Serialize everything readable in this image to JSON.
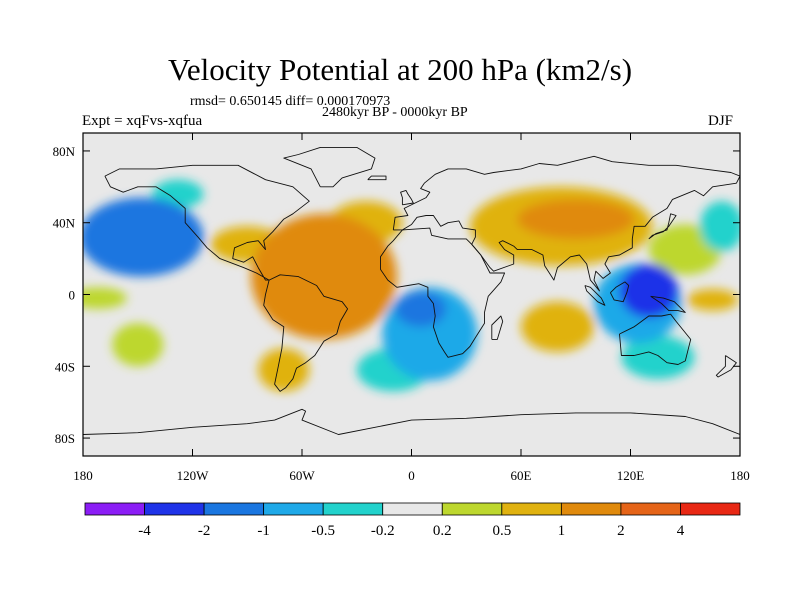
{
  "header": {
    "title": "Velocity Potential at 200 hPa (km2/s)",
    "stats": "rmsd= 0.650145 diff= 0.000170973",
    "period": "2480kyr BP - 0000kyr BP",
    "experiment": "Expt = xqFvs-xqfua",
    "season": "DJF"
  },
  "chart_data": {
    "type": "heatmap",
    "projection": "cylindrical-equidistant",
    "title": "Velocity Potential at 200 hPa (km2/s)",
    "units": "km2/s",
    "x_axis": {
      "range": [
        -180,
        180
      ],
      "ticks": [
        {
          "value": -180,
          "label": "180"
        },
        {
          "value": -120,
          "label": "120W"
        },
        {
          "value": -60,
          "label": "60W"
        },
        {
          "value": 0,
          "label": "0"
        },
        {
          "value": 60,
          "label": "60E"
        },
        {
          "value": 120,
          "label": "120E"
        },
        {
          "value": 180,
          "label": "180"
        }
      ]
    },
    "y_axis": {
      "range": [
        -90,
        90
      ],
      "ticks": [
        {
          "value": 80,
          "label": "80N"
        },
        {
          "value": 40,
          "label": "40N"
        },
        {
          "value": 0,
          "label": "0"
        },
        {
          "value": -40,
          "label": "40S"
        },
        {
          "value": -80,
          "label": "80S"
        }
      ]
    },
    "colorbar": {
      "colors": [
        "#8b1df5",
        "#1f33e8",
        "#1a76e0",
        "#1fa9e8",
        "#22d2cc",
        "#e8e8e8",
        "#bdd72e",
        "#e0b210",
        "#e08a0c",
        "#e56418",
        "#e82814"
      ],
      "labels": [
        {
          "boundary": 1,
          "label": "-4"
        },
        {
          "boundary": 2,
          "label": "-2"
        },
        {
          "boundary": 3,
          "label": "-1"
        },
        {
          "boundary": 4,
          "label": "-0.5"
        },
        {
          "boundary": 5,
          "label": "-0.2"
        },
        {
          "boundary": 6,
          "label": "0.2"
        },
        {
          "boundary": 7,
          "label": "0.5"
        },
        {
          "boundary": 8,
          "label": "1"
        },
        {
          "boundary": 9,
          "label": "2"
        },
        {
          "boundary": 10,
          "label": "4"
        }
      ]
    },
    "anomalies": [
      {
        "name": "north-pacific-low",
        "lon": -148,
        "lat": 32,
        "rlon": 34,
        "rlat": 22,
        "value": -1.2
      },
      {
        "name": "north-pacific-core",
        "lon": -152,
        "lat": 35,
        "rlon": 20,
        "rlat": 12,
        "value": -1.6
      },
      {
        "name": "ne-pacific-fringe",
        "lon": -128,
        "lat": 56,
        "rlon": 14,
        "rlat": 8,
        "value": -0.35
      },
      {
        "name": "tropical-atlantic-high",
        "lon": -48,
        "lat": 10,
        "rlon": 40,
        "rlat": 35,
        "value": 1.4
      },
      {
        "name": "amazon-core",
        "lon": -55,
        "lat": -4,
        "rlon": 22,
        "rlat": 18,
        "value": 1.9
      },
      {
        "name": "north-atlantic-extension",
        "lon": -25,
        "lat": 40,
        "rlon": 20,
        "rlat": 12,
        "value": 0.8
      },
      {
        "name": "central-america-arm",
        "lon": -90,
        "lat": 28,
        "rlon": 20,
        "rlat": 10,
        "value": 0.6
      },
      {
        "name": "south-atlantic-tail",
        "lon": -70,
        "lat": -42,
        "rlon": 14,
        "rlat": 12,
        "value": 0.6
      },
      {
        "name": "east-pacific-plus",
        "lon": -150,
        "lat": -28,
        "rlon": 14,
        "rlat": 12,
        "value": 0.4
      },
      {
        "name": "date-line-eq",
        "lon": -172,
        "lat": -2,
        "rlon": 16,
        "rlat": 6,
        "value": 0.4
      },
      {
        "name": "africa-southern-ocean-low",
        "lon": 10,
        "lat": -22,
        "rlon": 26,
        "rlat": 26,
        "value": -0.8
      },
      {
        "name": "africa-core",
        "lon": 5,
        "lat": -8,
        "rlon": 14,
        "rlat": 10,
        "value": -1.2
      },
      {
        "name": "south-atlantic-band",
        "lon": -10,
        "lat": -42,
        "rlon": 20,
        "rlat": 12,
        "value": -0.4
      },
      {
        "name": "eurasia-high",
        "lon": 82,
        "lat": 38,
        "rlon": 50,
        "rlat": 22,
        "value": 0.8
      },
      {
        "name": "asia-core",
        "lon": 90,
        "lat": 42,
        "rlon": 32,
        "rlat": 11,
        "value": 1.1
      },
      {
        "name": "indian-ocean-high",
        "lon": 80,
        "lat": -18,
        "rlon": 20,
        "rlat": 14,
        "value": 0.6
      },
      {
        "name": "maritime-low",
        "lon": 130,
        "lat": 2,
        "rlon": 16,
        "rlat": 15,
        "value": -2.4
      },
      {
        "name": "maritime-outer",
        "lon": 124,
        "lat": -5,
        "rlon": 24,
        "rlat": 22,
        "value": -0.8
      },
      {
        "name": "australia-band",
        "lon": 135,
        "lat": -35,
        "rlon": 20,
        "rlat": 12,
        "value": -0.35
      },
      {
        "name": "east-asia-pos",
        "lon": 150,
        "lat": 25,
        "rlon": 20,
        "rlat": 14,
        "value": 0.4
      },
      {
        "name": "w-pacific-eq-pos",
        "lon": 165,
        "lat": -3,
        "rlon": 14,
        "rlat": 6,
        "value": 0.7
      },
      {
        "name": "north-pacific-ne-low",
        "lon": 170,
        "lat": 38,
        "rlon": 12,
        "rlat": 14,
        "value": -0.4
      }
    ]
  }
}
